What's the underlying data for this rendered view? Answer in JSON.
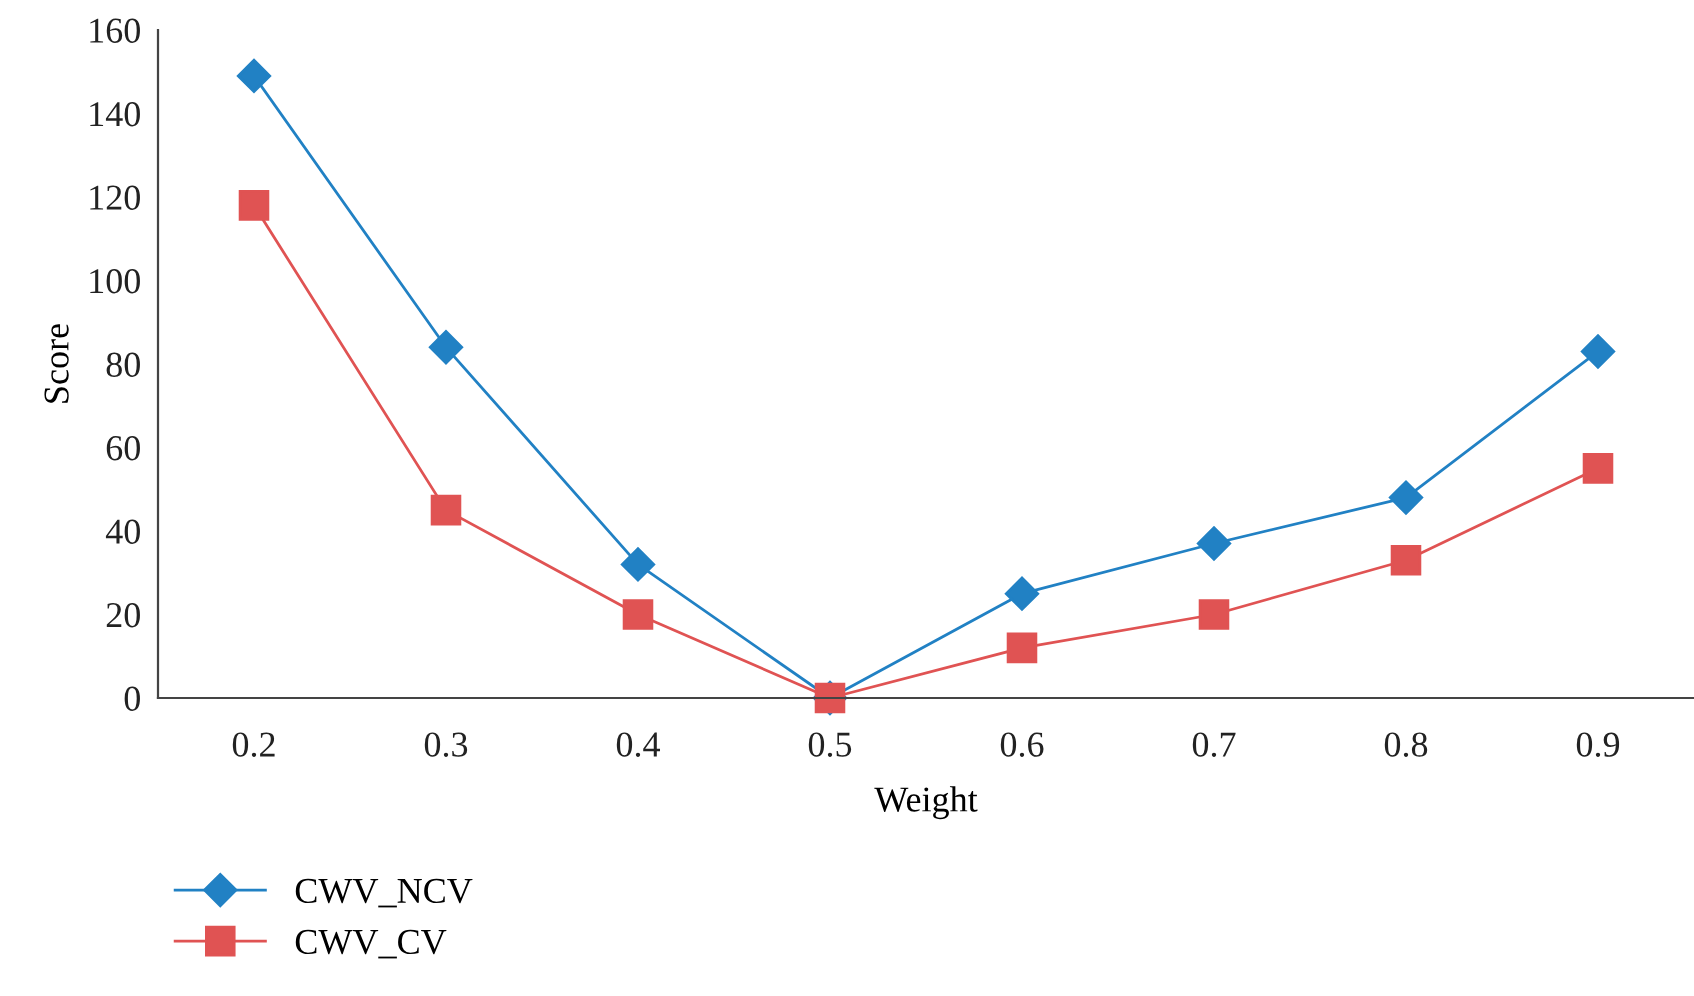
{
  "chart_data": {
    "type": "line",
    "xlabel": "Weight",
    "ylabel": "Score",
    "categories": [
      "0.2",
      "0.3",
      "0.4",
      "0.5",
      "0.6",
      "0.7",
      "0.8",
      "0.9"
    ],
    "series": [
      {
        "name": "CWV_NCV",
        "color": "#2181c4",
        "marker": "diamond",
        "values": [
          149,
          84,
          32,
          0,
          25,
          37,
          48,
          83
        ]
      },
      {
        "name": "CWV_CV",
        "color": "#e05353",
        "marker": "square",
        "values": [
          118,
          45,
          20,
          0,
          12,
          20,
          33,
          55
        ]
      }
    ],
    "ylim": [
      0,
      160
    ],
    "yticks": [
      0,
      20,
      40,
      60,
      80,
      100,
      120,
      140,
      160
    ],
    "grid": false,
    "legend": "bottom left",
    "line_style": "solid"
  }
}
